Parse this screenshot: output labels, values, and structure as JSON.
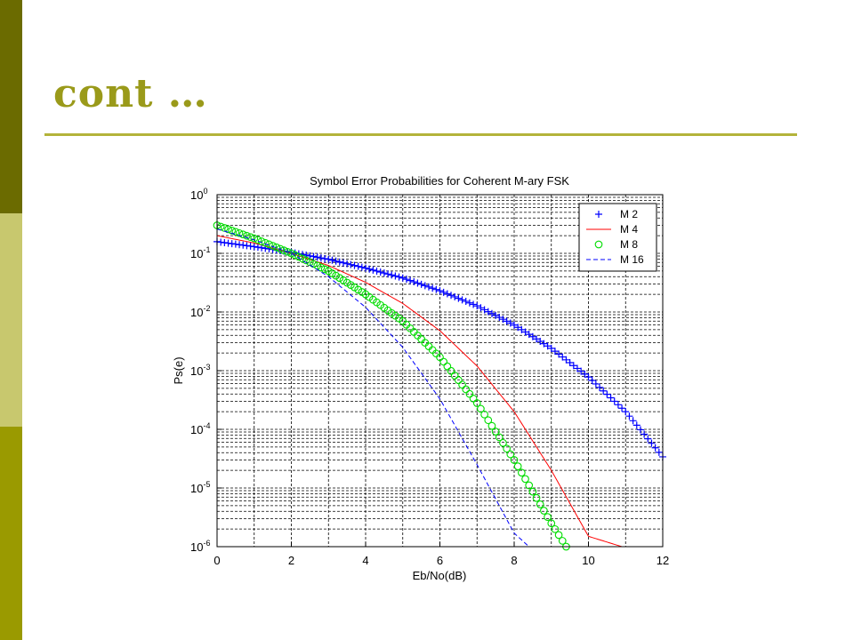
{
  "slide": {
    "title": "cont …",
    "colors": {
      "bar_top": "#6b6b00",
      "bar_middle": "#c8c86e",
      "bar_bottom": "#9a9a00",
      "title": "#9a9a1a",
      "rule": "#b3b33a"
    }
  },
  "chart_data": {
    "type": "line",
    "title": "Symbol Error Probabilities for Coherent M-ary FSK",
    "xlabel": "Eb/No(dB)",
    "ylabel": "Ps(e)",
    "xlim": [
      0,
      12
    ],
    "ylim": [
      1e-06,
      1
    ],
    "yscale": "log",
    "grid": true,
    "legend_position": "top-right",
    "x_ticks": [
      0,
      2,
      4,
      6,
      8,
      10,
      12
    ],
    "y_ticks": [
      {
        "base": "10",
        "exp": "0",
        "value": 1
      },
      {
        "base": "10",
        "exp": "-1",
        "value": 0.1
      },
      {
        "base": "10",
        "exp": "-2",
        "value": 0.01
      },
      {
        "base": "10",
        "exp": "-3",
        "value": 0.001
      },
      {
        "base": "10",
        "exp": "-4",
        "value": 0.0001
      },
      {
        "base": "10",
        "exp": "-5",
        "value": 1e-05
      },
      {
        "base": "10",
        "exp": "-6",
        "value": 1e-06
      }
    ],
    "series": [
      {
        "name": "M 2",
        "color": "#0000ff",
        "marker": "plus",
        "line": "none",
        "x": [
          0,
          1,
          2,
          3,
          4,
          5,
          6,
          7,
          8,
          9,
          10,
          11,
          12
        ],
        "y": [
          0.158,
          0.13,
          0.104,
          0.079,
          0.056,
          0.038,
          0.023,
          0.0127,
          0.006,
          0.0024,
          0.00078,
          0.0002,
          3.4e-05
        ]
      },
      {
        "name": "M 4",
        "color": "#ff0000",
        "marker": "none",
        "line": "solid",
        "x": [
          0,
          1,
          2,
          3,
          4,
          5,
          6,
          7,
          8,
          9,
          10,
          10.9
        ],
        "y": [
          0.2,
          0.15,
          0.1,
          0.062,
          0.032,
          0.014,
          0.0048,
          0.0012,
          0.0002,
          2e-05,
          1.5e-06,
          1e-06
        ]
      },
      {
        "name": "M 8",
        "color": "#00dd00",
        "marker": "circle",
        "line": "none",
        "x": [
          0,
          1,
          2,
          3,
          4,
          5,
          6,
          7,
          8,
          9,
          9.4
        ],
        "y": [
          0.3,
          0.18,
          0.1,
          0.05,
          0.02,
          0.007,
          0.0017,
          0.00028,
          3e-05,
          2.5e-06,
          1e-06
        ]
      },
      {
        "name": "M 16",
        "color": "#0000ff",
        "marker": "none",
        "line": "dashed",
        "x": [
          0,
          1,
          2,
          3,
          4,
          5,
          6,
          7,
          8,
          8.4
        ],
        "y": [
          0.26,
          0.17,
          0.1,
          0.04,
          0.012,
          0.0025,
          0.00033,
          2.5e-05,
          1.7e-06,
          1e-06
        ]
      }
    ]
  }
}
